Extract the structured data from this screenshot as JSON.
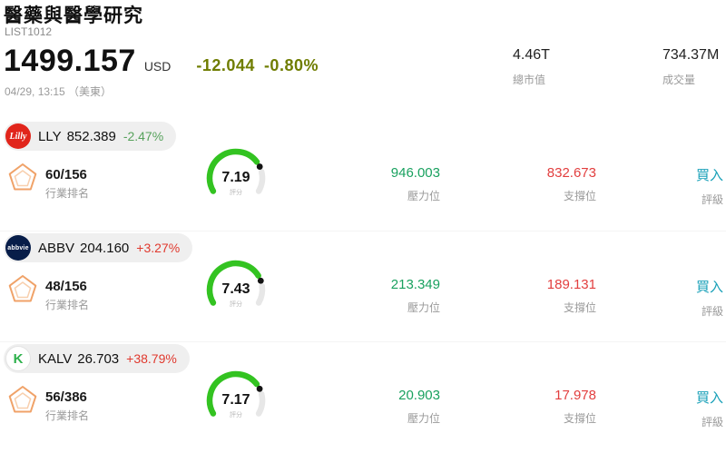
{
  "header": {
    "title": "醫藥與醫學研究",
    "list_id": "LIST1012",
    "price": "1499.157",
    "currency": "USD",
    "change": "-12.044",
    "change_pct": "-0.80%",
    "datetime": "04/29, 13:15 （美東）",
    "market_cap": {
      "value": "4.46T",
      "label": "總市值"
    },
    "volume": {
      "value": "734.37M",
      "label": "成交量"
    }
  },
  "labels": {
    "industry_rank": "行業排名",
    "score": "評分",
    "resistance": "壓力位",
    "support": "支撐位",
    "rating": "評級"
  },
  "colors": {
    "up": "#e0392e",
    "down": "#57a25c",
    "header_change": "#6f7d01",
    "resistance": "#19a15f",
    "support": "#e23e3e",
    "rating": "#18a0b8",
    "gauge_green": "#33c321"
  },
  "stocks": [
    {
      "ticker": "LLY",
      "logo_text": "Lilly",
      "price": "852.389",
      "change_pct": "-2.47%",
      "direction": "down",
      "rank": "60/156",
      "score": "7.19",
      "score_value": 7.19,
      "score_max": 10,
      "resistance": "946.003",
      "support": "832.673",
      "rating": "買入"
    },
    {
      "ticker": "ABBV",
      "logo_text": "abbvie",
      "price": "204.160",
      "change_pct": "+3.27%",
      "direction": "up",
      "rank": "48/156",
      "score": "7.43",
      "score_value": 7.43,
      "score_max": 10,
      "resistance": "213.349",
      "support": "189.131",
      "rating": "買入"
    },
    {
      "ticker": "KALV",
      "logo_text": "K",
      "price": "26.703",
      "change_pct": "+38.79%",
      "direction": "up",
      "rank": "56/386",
      "score": "7.17",
      "score_value": 7.17,
      "score_max": 10,
      "resistance": "20.903",
      "support": "17.978",
      "rating": "買入"
    }
  ]
}
